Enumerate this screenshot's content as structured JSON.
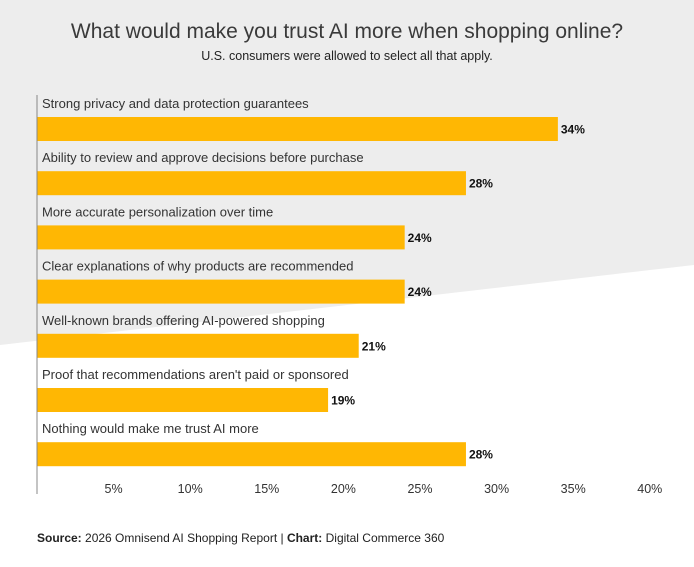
{
  "title": "What would make you trust AI more when shopping online?",
  "subtitle": "U.S. consumers were allowed to select all that apply.",
  "source": {
    "source_label": "Source:",
    "source_text": " 2026 Omnisend AI Shopping Report | ",
    "chart_label": "Chart:",
    "chart_text": " Digital Commerce 360"
  },
  "colors": {
    "bar": "#FFB703",
    "axis": "#888888",
    "background_band": "#EDEDED"
  },
  "chart_data": {
    "type": "bar",
    "orientation": "horizontal",
    "title": "What would make you trust AI more when shopping online?",
    "subtitle": "U.S. consumers were allowed to select all that apply.",
    "categories": [
      "Strong privacy and data protection guarantees",
      "Ability to review and approve decisions before purchase",
      "More accurate personalization over time",
      "Clear explanations of why products are recommended",
      "Well-known brands offering AI-powered shopping",
      "Proof that recommendations aren't paid or sponsored",
      "Nothing would make me trust AI more"
    ],
    "values": [
      34,
      28,
      24,
      24,
      21,
      19,
      28
    ],
    "value_labels": [
      "34%",
      "28%",
      "24%",
      "24%",
      "21%",
      "19%",
      "28%"
    ],
    "xlim": [
      0,
      40
    ],
    "xticks": [
      5,
      10,
      15,
      20,
      25,
      30,
      35,
      40
    ],
    "xtick_labels": [
      "5%",
      "10%",
      "15%",
      "20%",
      "25%",
      "30%",
      "35%",
      "40%"
    ],
    "grid": false,
    "legend": "none"
  }
}
